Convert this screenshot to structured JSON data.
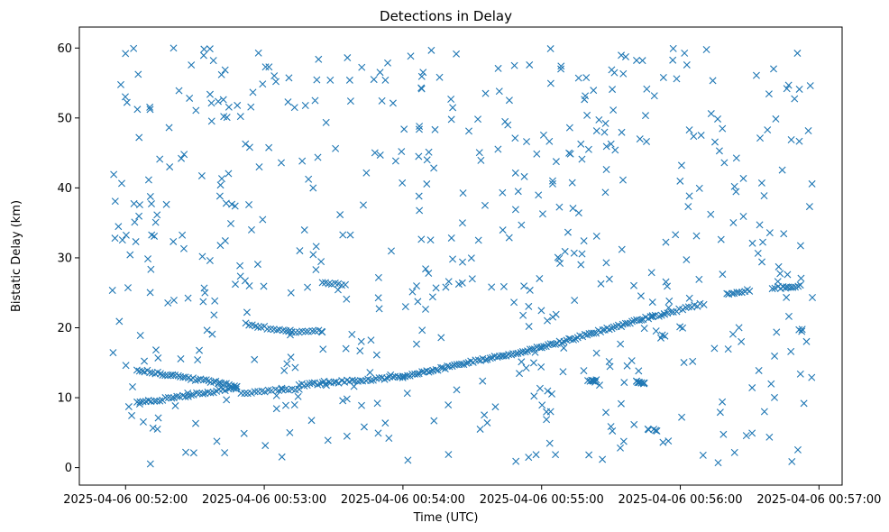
{
  "chart_data": {
    "type": "scatter",
    "title": "Detections in Delay",
    "xlabel": "Time (UTC)",
    "ylabel": "Bistatic Delay (km)",
    "x_range": [
      "2025-04-06 00:51:40",
      "2025-04-06 00:57:10"
    ],
    "ylim": [
      -2.5,
      63
    ],
    "grid": false,
    "marker": "x",
    "color": "#1f77b4",
    "x_ticks": [
      "2025-04-06 00:52:00",
      "2025-04-06 00:53:00",
      "2025-04-06 00:54:00",
      "2025-04-06 00:55:00",
      "2025-04-06 00:56:00",
      "2025-04-06 00:57:00"
    ],
    "y_ticks": [
      0,
      10,
      20,
      30,
      40,
      50,
      60
    ],
    "tracks": [
      {
        "from_time": "2025-04-06 00:52:05",
        "to_time": "2025-04-06 00:52:48",
        "from_delay": 14.0,
        "to_delay": 11.7,
        "points": 40
      },
      {
        "from_time": "2025-04-06 00:52:05",
        "to_time": "2025-04-06 00:52:48",
        "from_delay": 9.2,
        "to_delay": 11.4,
        "points": 36
      },
      {
        "from_time": "2025-04-06 00:52:50",
        "to_time": "2025-04-06 00:53:15",
        "from_delay": 10.7,
        "to_delay": 11.3,
        "points": 18
      },
      {
        "from_time": "2025-04-06 00:53:15",
        "to_time": "2025-04-06 00:54:00",
        "from_delay": 11.8,
        "to_delay": 13.0,
        "points": 40
      },
      {
        "from_time": "2025-04-06 00:54:00",
        "to_time": "2025-04-06 00:55:00",
        "from_delay": 13.0,
        "to_delay": 17.2,
        "points": 60
      },
      {
        "from_time": "2025-04-06 00:55:00",
        "to_time": "2025-04-06 00:55:48",
        "from_delay": 17.2,
        "to_delay": 21.6,
        "points": 50
      },
      {
        "from_time": "2025-04-06 00:55:48",
        "to_time": "2025-04-06 00:56:10",
        "from_delay": 21.6,
        "to_delay": 23.4,
        "points": 18
      },
      {
        "from_time": "2025-04-06 00:56:20",
        "to_time": "2025-04-06 00:56:30",
        "from_delay": 24.8,
        "to_delay": 25.4,
        "points": 10
      },
      {
        "from_time": "2025-04-06 00:56:40",
        "to_time": "2025-04-06 00:56:52",
        "from_delay": 25.7,
        "to_delay": 26.0,
        "points": 12
      },
      {
        "from_time": "2025-04-06 00:52:52",
        "to_time": "2025-04-06 00:53:12",
        "from_delay": 20.5,
        "to_delay": 19.4,
        "points": 16
      },
      {
        "from_time": "2025-04-06 00:53:12",
        "to_time": "2025-04-06 00:53:25",
        "from_delay": 19.3,
        "to_delay": 19.5,
        "points": 10
      },
      {
        "from_time": "2025-04-06 00:53:25",
        "to_time": "2025-04-06 00:53:35",
        "from_delay": 26.3,
        "to_delay": 26.2,
        "points": 8
      }
    ],
    "clusters": [
      {
        "time": "2025-04-06 00:55:22",
        "delay": 12.4,
        "points": 8
      },
      {
        "time": "2025-04-06 00:55:43",
        "delay": 12.2,
        "points": 10
      },
      {
        "time": "2025-04-06 00:55:48",
        "delay": 5.4,
        "points": 5
      }
    ],
    "noise": {
      "count": 560,
      "time_range": [
        "2025-04-06 00:51:53",
        "2025-04-06 00:56:58"
      ],
      "delay_range": [
        0.5,
        60
      ]
    }
  }
}
